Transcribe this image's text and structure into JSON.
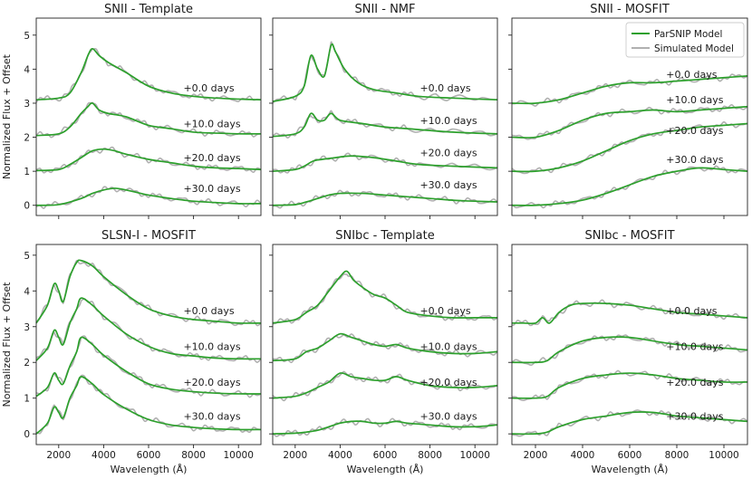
{
  "chart_data": {
    "type": "line",
    "ylabel": "Normalized Flux + Offset",
    "xlabel": "Wavelength (Å)",
    "xlim": [
      1000,
      11000
    ],
    "xticks": [
      2000,
      4000,
      6000,
      8000,
      10000
    ],
    "yticks": [
      0,
      1,
      2,
      3,
      4,
      5
    ],
    "legend": {
      "placement": "top-right",
      "entries": [
        {
          "name": "ParSNIP Model",
          "color": "#2ca02c"
        },
        {
          "name": "Simulated Model",
          "color": "#b0b0b0"
        }
      ]
    },
    "panels": [
      {
        "title": "SNII - Template",
        "ylim": [
          -0.3,
          5.5
        ],
        "annotations": [
          "+0.0 days",
          "+10.0 days",
          "+20.0 days",
          "+30.0 days"
        ],
        "ann_y": [
          3.45,
          2.4,
          1.4,
          0.5
        ],
        "series": [
          {
            "name": "ParSNIP Model",
            "offset": 3,
            "x": [
              1000,
              2000,
              2500,
              3000,
              3300,
              3500,
              3800,
              4200,
              5000,
              6000,
              7000,
              8000,
              9000,
              10000,
              11000
            ],
            "y": [
              0.1,
              0.15,
              0.3,
              0.9,
              1.4,
              1.6,
              1.4,
              1.2,
              0.9,
              0.5,
              0.3,
              0.2,
              0.15,
              0.12,
              0.1
            ]
          },
          {
            "name": "ParSNIP Model",
            "offset": 2,
            "x": [
              1000,
              2000,
              2500,
              3000,
              3300,
              3500,
              3800,
              4200,
              5000,
              6000,
              7000,
              8000,
              9000,
              10000,
              11000
            ],
            "y": [
              0.05,
              0.1,
              0.3,
              0.7,
              0.9,
              1.0,
              0.8,
              0.7,
              0.6,
              0.35,
              0.25,
              0.15,
              0.12,
              0.1,
              0.1
            ]
          },
          {
            "name": "ParSNIP Model",
            "offset": 1,
            "x": [
              1000,
              2000,
              2500,
              3000,
              3500,
              4000,
              4500,
              5000,
              6000,
              7000,
              8000,
              9000,
              10000,
              11000
            ],
            "y": [
              0.02,
              0.05,
              0.2,
              0.4,
              0.6,
              0.65,
              0.6,
              0.5,
              0.35,
              0.25,
              0.15,
              0.1,
              0.08,
              0.05
            ]
          },
          {
            "name": "ParSNIP Model",
            "offset": 0,
            "x": [
              1000,
              2000,
              3000,
              3500,
              4000,
              4500,
              5000,
              6000,
              7000,
              8000,
              9000,
              10000,
              11000
            ],
            "y": [
              0.0,
              0.02,
              0.2,
              0.35,
              0.45,
              0.5,
              0.45,
              0.3,
              0.2,
              0.12,
              0.08,
              0.05,
              0.05
            ]
          }
        ]
      },
      {
        "title": "SNII - NMF",
        "ylim": [
          -0.3,
          5.5
        ],
        "annotations": [
          "+0.0 days",
          "+10.0 days",
          "+20.0 days",
          "+30.0 days"
        ],
        "ann_y": [
          3.45,
          2.5,
          1.55,
          0.6
        ],
        "series": [
          {
            "name": "ParSNIP Model",
            "offset": 3,
            "x": [
              1000,
              2000,
              2400,
              2700,
              3000,
              3300,
              3600,
              3800,
              4200,
              4800,
              5500,
              6500,
              7500,
              9000,
              11000
            ],
            "y": [
              0.05,
              0.2,
              0.5,
              1.4,
              1.0,
              0.8,
              1.7,
              1.5,
              1.0,
              0.6,
              0.4,
              0.3,
              0.2,
              0.15,
              0.1
            ]
          },
          {
            "name": "ParSNIP Model",
            "offset": 2,
            "x": [
              1000,
              2000,
              2400,
              2700,
              3000,
              3300,
              3600,
              4000,
              5000,
              6000,
              7000,
              9000,
              11000
            ],
            "y": [
              0.02,
              0.1,
              0.3,
              0.7,
              0.5,
              0.5,
              0.7,
              0.5,
              0.4,
              0.3,
              0.25,
              0.15,
              0.1
            ]
          },
          {
            "name": "ParSNIP Model",
            "offset": 1,
            "x": [
              1000,
              2000,
              2400,
              2800,
              3200,
              3800,
              4500,
              5500,
              6500,
              7500,
              9000,
              11000
            ],
            "y": [
              0.0,
              0.05,
              0.15,
              0.3,
              0.35,
              0.4,
              0.45,
              0.4,
              0.3,
              0.2,
              0.15,
              0.1
            ]
          },
          {
            "name": "ParSNIP Model",
            "offset": 0,
            "x": [
              1000,
              2000,
              2500,
              3000,
              3500,
              4000,
              5000,
              6000,
              7000,
              8000,
              9000,
              10000,
              11000
            ],
            "y": [
              0.0,
              0.02,
              0.1,
              0.2,
              0.3,
              0.35,
              0.35,
              0.3,
              0.25,
              0.2,
              0.15,
              0.12,
              0.1
            ]
          }
        ]
      },
      {
        "title": "SNII - MOSFIT",
        "ylim": [
          -0.3,
          5.5
        ],
        "annotations": [
          "+0.0 days",
          "+10.0 days",
          "+20.0 days",
          "+30.0 days"
        ],
        "ann_y": [
          3.85,
          3.1,
          2.2,
          1.35
        ],
        "series": [
          {
            "name": "ParSNIP Model",
            "offset": 3,
            "x": [
              1000,
              2000,
              3000,
              4000,
              5000,
              6000,
              7000,
              8000,
              9000,
              10000,
              11000
            ],
            "y": [
              0.0,
              0.0,
              0.1,
              0.3,
              0.5,
              0.6,
              0.6,
              0.65,
              0.7,
              0.75,
              0.8
            ]
          },
          {
            "name": "ParSNIP Model",
            "offset": 2,
            "x": [
              1000,
              2000,
              3000,
              4000,
              5000,
              6000,
              7000,
              8000,
              9000,
              10000,
              11000
            ],
            "y": [
              0.0,
              0.0,
              0.2,
              0.5,
              0.7,
              0.75,
              0.8,
              0.75,
              0.8,
              0.85,
              0.9
            ]
          },
          {
            "name": "ParSNIP Model",
            "offset": 1,
            "x": [
              1000,
              2000,
              3000,
              4000,
              5000,
              6000,
              7000,
              8000,
              9000,
              10000,
              11000
            ],
            "y": [
              0.0,
              0.0,
              0.1,
              0.3,
              0.6,
              0.9,
              1.1,
              1.2,
              1.3,
              1.35,
              1.4
            ]
          },
          {
            "name": "ParSNIP Model",
            "offset": 0,
            "x": [
              1000,
              2000,
              3000,
              4000,
              5000,
              6000,
              7000,
              8000,
              9000,
              10000,
              11000
            ],
            "y": [
              0.0,
              0.0,
              0.05,
              0.15,
              0.35,
              0.6,
              0.85,
              1.0,
              1.1,
              1.05,
              1.0
            ]
          }
        ]
      },
      {
        "title": "SLSN-I - MOSFIT",
        "ylim": [
          -0.3,
          5.3
        ],
        "annotations": [
          "+0.0 days",
          "+10.0 days",
          "+20.0 days",
          "+30.0 days"
        ],
        "ann_y": [
          3.45,
          2.45,
          1.45,
          0.5
        ],
        "series": [
          {
            "name": "ParSNIP Model",
            "offset": 3,
            "x": [
              1000,
              1500,
              1800,
              2000,
              2200,
              2500,
              2800,
              3000,
              3500,
              4000,
              5000,
              6000,
              7000,
              8000,
              9000,
              10000,
              11000
            ],
            "y": [
              0.1,
              0.6,
              1.2,
              1.0,
              0.7,
              1.4,
              1.8,
              1.85,
              1.7,
              1.4,
              0.9,
              0.5,
              0.3,
              0.2,
              0.15,
              0.1,
              0.1
            ]
          },
          {
            "name": "ParSNIP Model",
            "offset": 2,
            "x": [
              1000,
              1500,
              1800,
              2000,
              2200,
              2500,
              2800,
              3000,
              3500,
              4000,
              5000,
              6000,
              7000,
              8000,
              9000,
              10000,
              11000
            ],
            "y": [
              0.05,
              0.4,
              0.9,
              0.7,
              0.5,
              1.1,
              1.5,
              1.8,
              1.6,
              1.3,
              0.8,
              0.45,
              0.25,
              0.18,
              0.12,
              0.1,
              0.1
            ]
          },
          {
            "name": "ParSNIP Model",
            "offset": 1,
            "x": [
              1000,
              1500,
              1800,
              2000,
              2200,
              2500,
              2800,
              3000,
              3500,
              4000,
              5000,
              6000,
              7000,
              8000,
              9000,
              10000,
              11000
            ],
            "y": [
              0.05,
              0.3,
              0.7,
              0.5,
              0.4,
              0.9,
              1.3,
              1.7,
              1.5,
              1.2,
              0.75,
              0.4,
              0.25,
              0.18,
              0.14,
              0.12,
              0.12
            ]
          },
          {
            "name": "ParSNIP Model",
            "offset": 0,
            "x": [
              1000,
              1500,
              1800,
              2000,
              2200,
              2500,
              2800,
              3000,
              3500,
              4000,
              5000,
              6000,
              7000,
              8000,
              9000,
              10000,
              11000
            ],
            "y": [
              0.0,
              0.3,
              0.75,
              0.6,
              0.45,
              1.0,
              1.35,
              1.6,
              1.4,
              1.1,
              0.7,
              0.4,
              0.25,
              0.18,
              0.14,
              0.12,
              0.12
            ]
          }
        ]
      },
      {
        "title": "SNIbc - Template",
        "ylim": [
          -0.3,
          5.3
        ],
        "annotations": [
          "+0.0 days",
          "+10.0 days",
          "+20.0 days",
          "+30.0 days"
        ],
        "ann_y": [
          3.45,
          2.45,
          1.45,
          0.5
        ],
        "series": [
          {
            "name": "ParSNIP Model",
            "offset": 3,
            "x": [
              1000,
              2000,
              2500,
              3000,
              3500,
              4000,
              4300,
              4600,
              5000,
              5500,
              6000,
              6500,
              7000,
              8000,
              9000,
              10000,
              11000
            ],
            "y": [
              0.1,
              0.2,
              0.4,
              0.6,
              1.0,
              1.4,
              1.55,
              1.3,
              1.1,
              0.9,
              0.8,
              0.6,
              0.4,
              0.3,
              0.25,
              0.25,
              0.25
            ]
          },
          {
            "name": "ParSNIP Model",
            "offset": 2,
            "x": [
              1000,
              2000,
              2500,
              3000,
              3500,
              4000,
              4500,
              5000,
              5500,
              6000,
              6500,
              7000,
              8000,
              9000,
              10000,
              11000
            ],
            "y": [
              0.05,
              0.1,
              0.3,
              0.4,
              0.6,
              0.8,
              0.7,
              0.6,
              0.5,
              0.45,
              0.5,
              0.4,
              0.3,
              0.25,
              0.25,
              0.3
            ]
          },
          {
            "name": "ParSNIP Model",
            "offset": 1,
            "x": [
              1000,
              2000,
              2500,
              3000,
              3500,
              4000,
              4500,
              5000,
              5500,
              6000,
              6500,
              7000,
              8000,
              9000,
              10000,
              11000
            ],
            "y": [
              0.0,
              0.05,
              0.15,
              0.3,
              0.45,
              0.7,
              0.6,
              0.55,
              0.5,
              0.5,
              0.6,
              0.5,
              0.35,
              0.3,
              0.3,
              0.35
            ]
          },
          {
            "name": "ParSNIP Model",
            "offset": 0,
            "x": [
              1000,
              2000,
              2500,
              3000,
              3500,
              4000,
              4500,
              5000,
              5500,
              6000,
              6500,
              7000,
              8000,
              9000,
              10000,
              11000
            ],
            "y": [
              0.0,
              0.02,
              0.05,
              0.1,
              0.2,
              0.3,
              0.35,
              0.35,
              0.3,
              0.3,
              0.35,
              0.3,
              0.25,
              0.2,
              0.2,
              0.25
            ]
          }
        ]
      },
      {
        "title": "SNIbc - MOSFIT",
        "ylim": [
          -0.3,
          5.3
        ],
        "annotations": [
          "+0.0 days",
          "+10.0 days",
          "+20.0 days",
          "+30.0 days"
        ],
        "ann_y": [
          3.45,
          2.45,
          1.45,
          0.5
        ],
        "series": [
          {
            "name": "ParSNIP Model",
            "offset": 3,
            "x": [
              1000,
              1500,
              2000,
              2300,
              2600,
              3000,
              3500,
              4000,
              5000,
              6000,
              7000,
              8000,
              9000,
              10000,
              11000
            ],
            "y": [
              0.1,
              0.1,
              0.1,
              0.25,
              0.1,
              0.4,
              0.6,
              0.65,
              0.65,
              0.6,
              0.5,
              0.4,
              0.35,
              0.3,
              0.25
            ]
          },
          {
            "name": "ParSNIP Model",
            "offset": 2,
            "x": [
              1000,
              2000,
              2500,
              3000,
              4000,
              5000,
              6000,
              7000,
              8000,
              9000,
              10000,
              11000
            ],
            "y": [
              0.0,
              0.0,
              0.05,
              0.3,
              0.6,
              0.7,
              0.7,
              0.6,
              0.5,
              0.45,
              0.4,
              0.35
            ]
          },
          {
            "name": "ParSNIP Model",
            "offset": 1,
            "x": [
              1000,
              2000,
              2500,
              3000,
              4000,
              5000,
              6000,
              7000,
              8000,
              9000,
              10000,
              11000
            ],
            "y": [
              0.0,
              0.0,
              0.05,
              0.3,
              0.55,
              0.65,
              0.7,
              0.65,
              0.55,
              0.5,
              0.45,
              0.45
            ]
          },
          {
            "name": "ParSNIP Model",
            "offset": 0,
            "x": [
              1000,
              2000,
              2500,
              3000,
              4000,
              5000,
              6000,
              7000,
              8000,
              9000,
              10000,
              11000
            ],
            "y": [
              0.0,
              0.0,
              0.05,
              0.2,
              0.4,
              0.5,
              0.6,
              0.6,
              0.5,
              0.45,
              0.4,
              0.35
            ]
          }
        ]
      }
    ]
  }
}
